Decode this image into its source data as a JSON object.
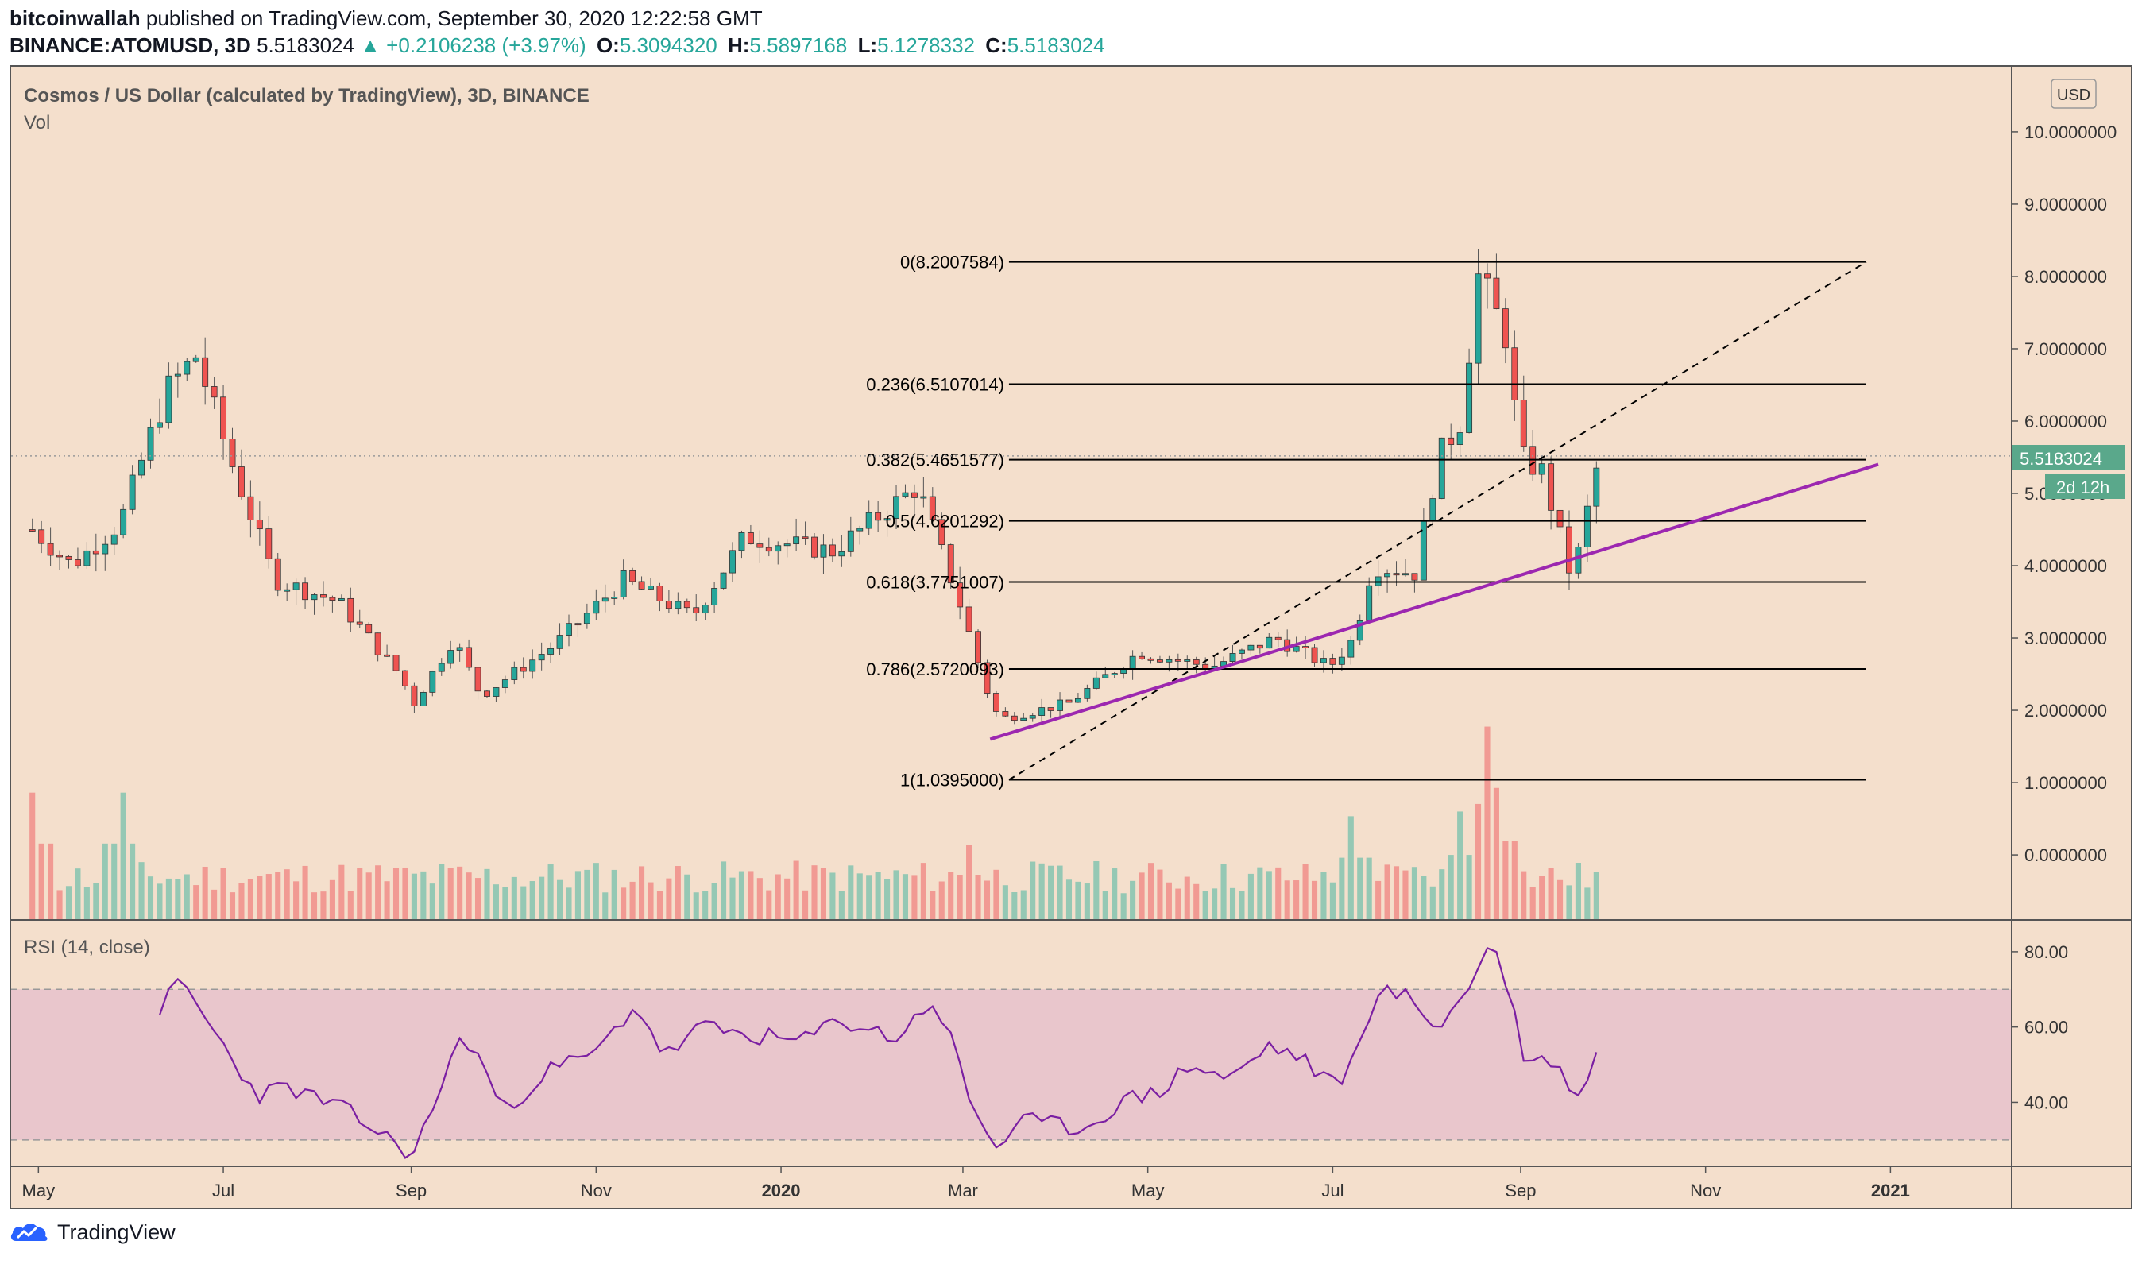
{
  "header": {
    "author": "bitcoinwallah",
    "published": "published on TradingView.com, September 30, 2020 12:22:58 GMT",
    "symbol": "BINANCE:ATOMUSD, 3D",
    "last": "5.5183024",
    "change": "+0.2106238 (+3.97%)",
    "o_label": "O:",
    "o": "5.3094320",
    "h_label": "H:",
    "h": "5.5897168",
    "l_label": "L:",
    "l": "5.1278332",
    "c_label": "C:",
    "c": "5.5183024"
  },
  "pane_title": "Cosmos / US Dollar (calculated by TradingView), 3D, BINANCE",
  "vol_label": "Vol",
  "rsi_label": "RSI (14, close)",
  "currency_badge": "USD",
  "price_label": "5.5183024",
  "countdown_label": "2d 12h",
  "brand": "TradingView",
  "colors": {
    "up": "#26a69a",
    "down": "#ef5350",
    "fib": "#000000",
    "trend": "#9c27b0",
    "rsi_line": "#7b1fa2",
    "background": "#f4dfcc"
  },
  "chart_data": [
    {
      "type": "candlestick",
      "title": "Cosmos / US Dollar (calculated by TradingView), 3D, BINANCE",
      "y_ticks": [
        "0.0000000",
        "1.0000000",
        "2.0000000",
        "3.0000000",
        "4.0000000",
        "5.0000000",
        "6.0000000",
        "7.0000000",
        "8.0000000",
        "9.0000000",
        "10.0000000"
      ],
      "ylim": [
        -0.9,
        10.9
      ],
      "x_ticks": [
        "May",
        "Jul",
        "Sep",
        "Nov",
        "2020",
        "Mar",
        "May",
        "Jul",
        "Sep",
        "Nov",
        "2021"
      ],
      "x_range": [
        "2019-04-22",
        "2021-02-10"
      ],
      "close_anchors": [
        [
          "2019-04-29",
          4.5
        ],
        [
          "2019-05-12",
          4.0
        ],
        [
          "2019-05-28",
          4.6
        ],
        [
          "2019-06-12",
          6.4
        ],
        [
          "2019-06-22",
          6.9
        ],
        [
          "2019-07-03",
          5.5
        ],
        [
          "2019-07-18",
          3.8
        ],
        [
          "2019-08-08",
          3.5
        ],
        [
          "2019-08-28",
          2.5
        ],
        [
          "2019-09-02",
          2.1
        ],
        [
          "2019-09-15",
          3.0
        ],
        [
          "2019-09-24",
          2.2
        ],
        [
          "2019-10-18",
          2.9
        ],
        [
          "2019-11-10",
          3.8
        ],
        [
          "2019-12-03",
          3.3
        ],
        [
          "2019-12-20",
          4.4
        ],
        [
          "2020-01-18",
          4.2
        ],
        [
          "2020-02-15",
          5.1
        ],
        [
          "2020-02-28",
          3.6
        ],
        [
          "2020-03-11",
          2.0
        ],
        [
          "2020-03-15",
          1.9
        ],
        [
          "2020-04-05",
          2.1
        ],
        [
          "2020-04-28",
          2.8
        ],
        [
          "2020-05-22",
          2.6
        ],
        [
          "2020-06-12",
          3.0
        ],
        [
          "2020-06-30",
          2.6
        ],
        [
          "2020-07-08",
          3.0
        ],
        [
          "2020-07-14",
          4.0
        ],
        [
          "2020-07-28",
          3.9
        ],
        [
          "2020-08-05",
          5.5
        ],
        [
          "2020-08-12",
          6.0
        ],
        [
          "2020-08-18",
          8.0
        ],
        [
          "2020-08-27",
          7.2
        ],
        [
          "2020-09-01",
          5.5
        ],
        [
          "2020-09-08",
          5.3
        ],
        [
          "2020-09-18",
          3.8
        ],
        [
          "2020-09-27",
          5.5183024
        ]
      ],
      "volume_peaks": [
        [
          "2019-04-30",
          1.35
        ],
        [
          "2019-05-28",
          1.35
        ],
        [
          "2019-09-17",
          0.45
        ],
        [
          "2020-01-15",
          0.45
        ],
        [
          "2020-03-03",
          0.8
        ],
        [
          "2020-07-08",
          1.1
        ],
        [
          "2020-08-12",
          1.15
        ],
        [
          "2020-08-21",
          2.05
        ],
        [
          "2020-08-25",
          1.4
        ]
      ]
    },
    {
      "type": "fibonacci_retracement",
      "levels": [
        {
          "label": "0(8.2007584)",
          "ratio": 0,
          "value": 8.2007584
        },
        {
          "label": "0.236(6.5107014)",
          "ratio": 0.236,
          "value": 6.5107014
        },
        {
          "label": "0.382(5.4651577)",
          "ratio": 0.382,
          "value": 5.4651577
        },
        {
          "label": "0.5(4.6201292)",
          "ratio": 0.5,
          "value": 4.6201292
        },
        {
          "label": "0.618(3.7751007)",
          "ratio": 0.618,
          "value": 3.7751007
        },
        {
          "label": "0.786(2.5720093)",
          "ratio": 0.786,
          "value": 2.5720093
        },
        {
          "label": "1(1.0395000)",
          "ratio": 1,
          "value": 1.0395
        }
      ],
      "start": "2020-03-12",
      "end": "2020-12-24"
    },
    {
      "type": "line",
      "name": "trendline",
      "points": [
        [
          "2020-03-10",
          1.6
        ],
        [
          "2020-12-28",
          5.4
        ]
      ]
    },
    {
      "type": "line",
      "title": "RSI (14, close)",
      "y_ticks": [
        "40.00",
        "60.00",
        "80.00"
      ],
      "ylim": [
        23,
        88
      ],
      "band": [
        30,
        70
      ],
      "anchors": [
        [
          "2019-06-10",
          65
        ],
        [
          "2019-06-17",
          72
        ],
        [
          "2019-06-22",
          66
        ],
        [
          "2019-07-01",
          55
        ],
        [
          "2019-07-12",
          42
        ],
        [
          "2019-07-22",
          44
        ],
        [
          "2019-08-10",
          38
        ],
        [
          "2019-08-25",
          30
        ],
        [
          "2019-09-02",
          26
        ],
        [
          "2019-09-12",
          47
        ],
        [
          "2019-09-18",
          58
        ],
        [
          "2019-09-25",
          50
        ],
        [
          "2019-10-01",
          37
        ],
        [
          "2019-10-15",
          48
        ],
        [
          "2019-11-01",
          53
        ],
        [
          "2019-11-14",
          66
        ],
        [
          "2019-11-24",
          52
        ],
        [
          "2019-12-05",
          60
        ],
        [
          "2019-12-20",
          58
        ],
        [
          "2020-01-08",
          56
        ],
        [
          "2020-01-20",
          62
        ],
        [
          "2020-02-08",
          57
        ],
        [
          "2020-02-20",
          67
        ],
        [
          "2020-02-27",
          55
        ],
        [
          "2020-03-03",
          41
        ],
        [
          "2020-03-12",
          28
        ],
        [
          "2020-03-20",
          35
        ],
        [
          "2020-04-10",
          33
        ],
        [
          "2020-04-22",
          40
        ],
        [
          "2020-05-05",
          43
        ],
        [
          "2020-05-15",
          50
        ],
        [
          "2020-05-28",
          46
        ],
        [
          "2020-06-10",
          55
        ],
        [
          "2020-06-20",
          52
        ],
        [
          "2020-07-02",
          44
        ],
        [
          "2020-07-10",
          55
        ],
        [
          "2020-07-15",
          70
        ],
        [
          "2020-07-25",
          68
        ],
        [
          "2020-08-05",
          60
        ],
        [
          "2020-08-15",
          70
        ],
        [
          "2020-08-22",
          84
        ],
        [
          "2020-08-27",
          72
        ],
        [
          "2020-09-03",
          50
        ],
        [
          "2020-09-10",
          52
        ],
        [
          "2020-09-20",
          42
        ],
        [
          "2020-09-27",
          54
        ]
      ]
    }
  ]
}
